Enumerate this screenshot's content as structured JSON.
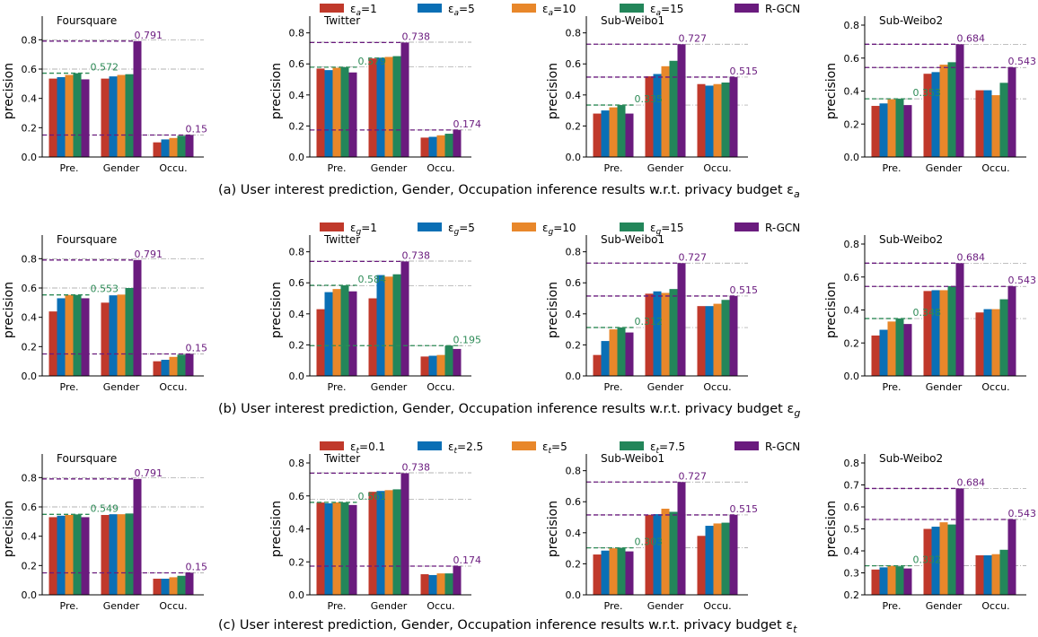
{
  "colors": {
    "series": [
      "#c0392b",
      "#0a6fb5",
      "#e8872a",
      "#23865a",
      "#6a1b7e"
    ],
    "green_ref": "#2e8b57",
    "purple_ref": "#6a1b7e"
  },
  "chart_data": [
    {
      "type": "bar",
      "group": "a",
      "title": "Foursquare",
      "categories": [
        "Pre.",
        "Gender",
        "Occu."
      ],
      "series": [
        {
          "name": "εa=1",
          "values": [
            0.535,
            0.535,
            0.1
          ]
        },
        {
          "name": "εa=5",
          "values": [
            0.545,
            0.55,
            0.12
          ]
        },
        {
          "name": "εa=10",
          "values": [
            0.56,
            0.56,
            0.13
          ]
        },
        {
          "name": "εa=15",
          "values": [
            0.572,
            0.565,
            0.145
          ]
        },
        {
          "name": "R-GCN",
          "values": [
            0.53,
            0.791,
            0.15
          ]
        }
      ],
      "ylabel": "precision",
      "ylim": [
        0,
        0.9
      ],
      "yticks": [
        0.0,
        0.2,
        0.4,
        0.6,
        0.8
      ],
      "reference_lines": [
        {
          "value": 0.572,
          "label": "0.572",
          "color": "green"
        },
        {
          "value": 0.791,
          "label": "0.791",
          "color": "purple"
        },
        {
          "value": 0.15,
          "label": "0.15",
          "color": "purple"
        }
      ],
      "grid_lines": [
        0.8,
        0.6,
        0.15
      ]
    },
    {
      "type": "bar",
      "group": "a",
      "title": "Twitter",
      "categories": [
        "Pre.",
        "Gender",
        "Occu."
      ],
      "series": [
        {
          "name": "εa=1",
          "values": [
            0.57,
            0.635,
            0.125
          ]
        },
        {
          "name": "εa=5",
          "values": [
            0.56,
            0.64,
            0.13
          ]
        },
        {
          "name": "εa=10",
          "values": [
            0.575,
            0.645,
            0.14
          ]
        },
        {
          "name": "εa=15",
          "values": [
            0.579,
            0.65,
            0.15
          ]
        },
        {
          "name": "R-GCN",
          "values": [
            0.545,
            0.738,
            0.174
          ]
        }
      ],
      "ylabel": "precision",
      "ylim": [
        0,
        0.85
      ],
      "yticks": [
        0.0,
        0.2,
        0.4,
        0.6,
        0.8
      ],
      "reference_lines": [
        {
          "value": 0.579,
          "label": "0.579",
          "color": "green"
        },
        {
          "value": 0.738,
          "label": "0.738",
          "color": "purple"
        },
        {
          "value": 0.174,
          "label": "0.174",
          "color": "purple"
        }
      ],
      "grid_lines": [
        0.74,
        0.58,
        0.174
      ]
    },
    {
      "type": "bar",
      "group": "a",
      "title": "Sub-Weibo1",
      "categories": [
        "Pre.",
        "Gender",
        "Occu."
      ],
      "series": [
        {
          "name": "εa=1",
          "values": [
            0.28,
            0.52,
            0.47
          ]
        },
        {
          "name": "εa=5",
          "values": [
            0.3,
            0.535,
            0.46
          ]
        },
        {
          "name": "εa=10",
          "values": [
            0.32,
            0.585,
            0.47
          ]
        },
        {
          "name": "εa=15",
          "values": [
            0.335,
            0.62,
            0.48
          ]
        },
        {
          "name": "R-GCN",
          "values": [
            0.28,
            0.727,
            0.515
          ]
        }
      ],
      "ylabel": "precision",
      "ylim": [
        0,
        0.85
      ],
      "yticks": [
        0.0,
        0.2,
        0.4,
        0.6,
        0.8
      ],
      "reference_lines": [
        {
          "value": 0.335,
          "label": "0.335",
          "color": "green"
        },
        {
          "value": 0.727,
          "label": "0.727",
          "color": "purple"
        },
        {
          "value": 0.515,
          "label": "0.515",
          "color": "purple"
        }
      ],
      "grid_lines": [
        0.727,
        0.515,
        0.335
      ]
    },
    {
      "type": "bar",
      "group": "a",
      "title": "Sub-Weibo2",
      "categories": [
        "Pre.",
        "Gender",
        "Occu."
      ],
      "series": [
        {
          "name": "εa=1",
          "values": [
            0.31,
            0.505,
            0.405
          ]
        },
        {
          "name": "εa=5",
          "values": [
            0.325,
            0.515,
            0.405
          ]
        },
        {
          "name": "εa=10",
          "values": [
            0.35,
            0.56,
            0.375
          ]
        },
        {
          "name": "εa=15",
          "values": [
            0.353,
            0.575,
            0.45
          ]
        },
        {
          "name": "R-GCN",
          "values": [
            0.315,
            0.684,
            0.543
          ]
        }
      ],
      "ylabel": "precision",
      "ylim": [
        0,
        0.8
      ],
      "yticks": [
        0.0,
        0.2,
        0.4,
        0.6,
        0.8
      ],
      "reference_lines": [
        {
          "value": 0.353,
          "label": "0.353",
          "color": "green"
        },
        {
          "value": 0.684,
          "label": "0.684",
          "color": "purple"
        },
        {
          "value": 0.543,
          "label": "0.543",
          "color": "purple"
        }
      ],
      "grid_lines": [
        0.684,
        0.543,
        0.353
      ]
    },
    {
      "type": "bar",
      "group": "b",
      "title": "Foursquare",
      "categories": [
        "Pre.",
        "Gender",
        "Occu."
      ],
      "series": [
        {
          "name": "εg=1",
          "values": [
            0.44,
            0.5,
            0.1
          ]
        },
        {
          "name": "εg=5",
          "values": [
            0.53,
            0.55,
            0.11
          ]
        },
        {
          "name": "εg=10",
          "values": [
            0.553,
            0.555,
            0.13
          ]
        },
        {
          "name": "εg=15",
          "values": [
            0.553,
            0.6,
            0.145
          ]
        },
        {
          "name": "R-GCN",
          "values": [
            0.53,
            0.791,
            0.15
          ]
        }
      ],
      "ylabel": "precision",
      "ylim": [
        0,
        0.9
      ],
      "yticks": [
        0.0,
        0.2,
        0.4,
        0.6,
        0.8
      ],
      "reference_lines": [
        {
          "value": 0.553,
          "label": "0.553",
          "color": "green"
        },
        {
          "value": 0.791,
          "label": "0.791",
          "color": "purple"
        },
        {
          "value": 0.15,
          "label": "0.15",
          "color": "purple"
        }
      ],
      "grid_lines": [
        0.8,
        0.6,
        0.15
      ]
    },
    {
      "type": "bar",
      "group": "b",
      "title": "Twitter",
      "categories": [
        "Pre.",
        "Gender",
        "Occu."
      ],
      "series": [
        {
          "name": "εg=1",
          "values": [
            0.43,
            0.5,
            0.125
          ]
        },
        {
          "name": "εg=5",
          "values": [
            0.54,
            0.65,
            0.13
          ]
        },
        {
          "name": "εg=10",
          "values": [
            0.56,
            0.64,
            0.135
          ]
        },
        {
          "name": "εg=15",
          "values": [
            0.584,
            0.655,
            0.195
          ]
        },
        {
          "name": "R-GCN",
          "values": [
            0.545,
            0.738,
            0.174
          ]
        }
      ],
      "ylabel": "precision",
      "ylim": [
        0,
        0.85
      ],
      "yticks": [
        0.0,
        0.2,
        0.4,
        0.6,
        0.8
      ],
      "reference_lines": [
        {
          "value": 0.584,
          "label": "0.584",
          "color": "green"
        },
        {
          "value": 0.738,
          "label": "0.738",
          "color": "purple"
        },
        {
          "value": 0.195,
          "label": "0.195",
          "color": "green"
        }
      ],
      "grid_lines": [
        0.74,
        0.58,
        0.195
      ]
    },
    {
      "type": "bar",
      "group": "b",
      "title": "Sub-Weibo1",
      "categories": [
        "Pre.",
        "Gender",
        "Occu."
      ],
      "series": [
        {
          "name": "εg=1",
          "values": [
            0.135,
            0.53,
            0.45
          ]
        },
        {
          "name": "εg=5",
          "values": [
            0.225,
            0.545,
            0.45
          ]
        },
        {
          "name": "εg=10",
          "values": [
            0.3,
            0.535,
            0.465
          ]
        },
        {
          "name": "εg=15",
          "values": [
            0.312,
            0.56,
            0.49
          ]
        },
        {
          "name": "R-GCN",
          "values": [
            0.28,
            0.727,
            0.515
          ]
        }
      ],
      "ylabel": "precision",
      "ylim": [
        0,
        0.85
      ],
      "yticks": [
        0.0,
        0.2,
        0.4,
        0.6,
        0.8
      ],
      "reference_lines": [
        {
          "value": 0.312,
          "label": "0.312",
          "color": "green"
        },
        {
          "value": 0.727,
          "label": "0.727",
          "color": "purple"
        },
        {
          "value": 0.515,
          "label": "0.515",
          "color": "purple"
        }
      ],
      "grid_lines": [
        0.727,
        0.515,
        0.312
      ]
    },
    {
      "type": "bar",
      "group": "b",
      "title": "Sub-Weibo2",
      "categories": [
        "Pre.",
        "Gender",
        "Occu."
      ],
      "series": [
        {
          "name": "εg=1",
          "values": [
            0.245,
            0.515,
            0.385
          ]
        },
        {
          "name": "εg=5",
          "values": [
            0.28,
            0.52,
            0.405
          ]
        },
        {
          "name": "εg=10",
          "values": [
            0.33,
            0.52,
            0.405
          ]
        },
        {
          "name": "εg=15",
          "values": [
            0.348,
            0.545,
            0.465
          ]
        },
        {
          "name": "R-GCN",
          "values": [
            0.315,
            0.684,
            0.543
          ]
        }
      ],
      "ylabel": "precision",
      "ylim": [
        0,
        0.8
      ],
      "yticks": [
        0.0,
        0.2,
        0.4,
        0.6,
        0.8
      ],
      "reference_lines": [
        {
          "value": 0.348,
          "label": "0.348",
          "color": "green"
        },
        {
          "value": 0.684,
          "label": "0.684",
          "color": "purple"
        },
        {
          "value": 0.543,
          "label": "0.543",
          "color": "purple"
        }
      ],
      "grid_lines": [
        0.684,
        0.543,
        0.348
      ]
    },
    {
      "type": "bar",
      "group": "c",
      "title": "Foursquare",
      "categories": [
        "Pre.",
        "Gender",
        "Occu."
      ],
      "series": [
        {
          "name": "εt=0.1",
          "values": [
            0.53,
            0.545,
            0.11
          ]
        },
        {
          "name": "εt=2.5",
          "values": [
            0.54,
            0.55,
            0.11
          ]
        },
        {
          "name": "εt=5",
          "values": [
            0.545,
            0.55,
            0.12
          ]
        },
        {
          "name": "εt=7.5",
          "values": [
            0.549,
            0.555,
            0.13
          ]
        },
        {
          "name": "R-GCN",
          "values": [
            0.53,
            0.791,
            0.15
          ]
        }
      ],
      "ylabel": "precision",
      "ylim": [
        0,
        0.9
      ],
      "yticks": [
        0.0,
        0.2,
        0.4,
        0.6,
        0.8
      ],
      "reference_lines": [
        {
          "value": 0.549,
          "label": "0.549",
          "color": "green"
        },
        {
          "value": 0.791,
          "label": "0.791",
          "color": "purple"
        },
        {
          "value": 0.15,
          "label": "0.15",
          "color": "purple"
        }
      ],
      "grid_lines": [
        0.8,
        0.6,
        0.15
      ]
    },
    {
      "type": "bar",
      "group": "c",
      "title": "Twitter",
      "categories": [
        "Pre.",
        "Gender",
        "Occu."
      ],
      "series": [
        {
          "name": "εt=0.1",
          "values": [
            0.56,
            0.625,
            0.125
          ]
        },
        {
          "name": "εt=2.5",
          "values": [
            0.555,
            0.63,
            0.12
          ]
        },
        {
          "name": "εt=5",
          "values": [
            0.561,
            0.635,
            0.13
          ]
        },
        {
          "name": "εt=7.5",
          "values": [
            0.561,
            0.64,
            0.13
          ]
        },
        {
          "name": "R-GCN",
          "values": [
            0.545,
            0.738,
            0.174
          ]
        }
      ],
      "ylabel": "precision",
      "ylim": [
        0,
        0.8
      ],
      "yticks": [
        0.0,
        0.2,
        0.4,
        0.6,
        0.8
      ],
      "reference_lines": [
        {
          "value": 0.561,
          "label": "0.561",
          "color": "green"
        },
        {
          "value": 0.738,
          "label": "0.738",
          "color": "purple"
        },
        {
          "value": 0.174,
          "label": "0.174",
          "color": "purple"
        }
      ],
      "grid_lines": [
        0.74,
        0.58,
        0.174
      ]
    },
    {
      "type": "bar",
      "group": "c",
      "title": "Sub-Weibo1",
      "categories": [
        "Pre.",
        "Gender",
        "Occu."
      ],
      "series": [
        {
          "name": "εt=0.1",
          "values": [
            0.26,
            0.515,
            0.38
          ]
        },
        {
          "name": "εt=2.5",
          "values": [
            0.285,
            0.52,
            0.445
          ]
        },
        {
          "name": "εt=5",
          "values": [
            0.3,
            0.555,
            0.46
          ]
        },
        {
          "name": "εt=7.5",
          "values": [
            0.303,
            0.535,
            0.465
          ]
        },
        {
          "name": "R-GCN",
          "values": [
            0.28,
            0.727,
            0.515
          ]
        }
      ],
      "ylabel": "precision",
      "ylim": [
        0,
        0.85
      ],
      "yticks": [
        0.0,
        0.2,
        0.4,
        0.6,
        0.8
      ],
      "reference_lines": [
        {
          "value": 0.303,
          "label": "0.303",
          "color": "green"
        },
        {
          "value": 0.727,
          "label": "0.727",
          "color": "purple"
        },
        {
          "value": 0.515,
          "label": "0.515",
          "color": "purple"
        }
      ],
      "grid_lines": [
        0.727,
        0.515,
        0.303
      ]
    },
    {
      "type": "bar",
      "group": "c",
      "title": "Sub-Weibo2",
      "categories": [
        "Pre.",
        "Gender",
        "Occu."
      ],
      "series": [
        {
          "name": "εt=0.1",
          "values": [
            0.315,
            0.5,
            0.38
          ]
        },
        {
          "name": "εt=2.5",
          "values": [
            0.325,
            0.51,
            0.38
          ]
        },
        {
          "name": "εt=5",
          "values": [
            0.332,
            0.53,
            0.385
          ]
        },
        {
          "name": "εt=7.5",
          "values": [
            0.33,
            0.52,
            0.405
          ]
        },
        {
          "name": "R-GCN",
          "values": [
            0.32,
            0.684,
            0.543
          ]
        }
      ],
      "ylabel": "precision",
      "ylim": [
        0.2,
        0.8
      ],
      "yticks": [
        0.2,
        0.3,
        0.4,
        0.5,
        0.6,
        0.7,
        0.8
      ],
      "reference_lines": [
        {
          "value": 0.332,
          "label": "0.332",
          "color": "green"
        },
        {
          "value": 0.684,
          "label": "0.684",
          "color": "purple"
        },
        {
          "value": 0.543,
          "label": "0.543",
          "color": "purple"
        }
      ],
      "grid_lines": [
        0.684,
        0.543,
        0.332
      ]
    }
  ],
  "legends": {
    "a": [
      {
        "base": "ε",
        "sub": "a",
        "suffix": "=1"
      },
      {
        "base": "ε",
        "sub": "a",
        "suffix": "=5"
      },
      {
        "base": "ε",
        "sub": "a",
        "suffix": "=10"
      },
      {
        "base": "ε",
        "sub": "a",
        "suffix": "=15"
      },
      {
        "base": "R-GCN",
        "sub": "",
        "suffix": ""
      }
    ],
    "b": [
      {
        "base": "ε",
        "sub": "g",
        "suffix": "=1"
      },
      {
        "base": "ε",
        "sub": "g",
        "suffix": "=5"
      },
      {
        "base": "ε",
        "sub": "g",
        "suffix": "=10"
      },
      {
        "base": "ε",
        "sub": "g",
        "suffix": "=15"
      },
      {
        "base": "R-GCN",
        "sub": "",
        "suffix": ""
      }
    ],
    "c": [
      {
        "base": "ε",
        "sub": "t",
        "suffix": "=0.1"
      },
      {
        "base": "ε",
        "sub": "t",
        "suffix": "=2.5"
      },
      {
        "base": "ε",
        "sub": "t",
        "suffix": "=5"
      },
      {
        "base": "ε",
        "sub": "t",
        "suffix": "=7.5"
      },
      {
        "base": "R-GCN",
        "sub": "",
        "suffix": ""
      }
    ]
  },
  "captions": {
    "a": {
      "text": "(a) User interest prediction, Gender, Occupation inference results w.r.t. privacy budget ε",
      "sub": "a"
    },
    "b": {
      "text": "(b) User interest prediction, Gender, Occupation inference results w.r.t. privacy budget ε",
      "sub": "g"
    },
    "c": {
      "text": "(c) User interest prediction, Gender, Occupation inference results w.r.t. privacy budget ε",
      "sub": "t"
    }
  }
}
